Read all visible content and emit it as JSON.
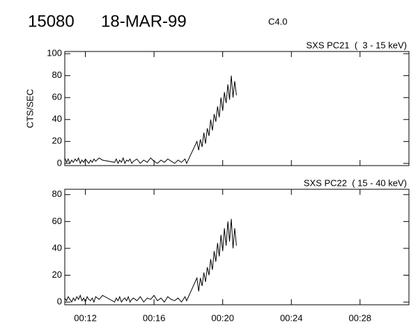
{
  "header": {
    "id": "15080",
    "date": "18-MAR-99",
    "class": "C4.0"
  },
  "chart_data": [
    {
      "type": "line",
      "title": "SXS PC21  (  3 - 15 keV)",
      "ylabel": "CTS/SEC",
      "color": "#000000",
      "xlim": [
        10.8,
        30.85
      ],
      "xticks": [
        12,
        16,
        20,
        24,
        28
      ],
      "ylim": [
        -2,
        102
      ],
      "yticks": [
        0,
        20,
        40,
        60,
        80,
        100
      ],
      "x": [
        10.8,
        10.9,
        11.0,
        11.1,
        11.2,
        11.3,
        11.4,
        11.5,
        11.6,
        11.7,
        11.8,
        11.9,
        12.0,
        12.1,
        12.2,
        12.3,
        12.4,
        12.5,
        12.6,
        12.8,
        13.0,
        13.7,
        13.8,
        13.9,
        14.0,
        14.1,
        14.2,
        14.3,
        14.4,
        14.5,
        14.6,
        14.7,
        14.8,
        15.0,
        15.2,
        15.4,
        15.6,
        15.8,
        16.0,
        16.2,
        16.4,
        16.6,
        16.8,
        17.0,
        17.2,
        17.4,
        17.6,
        17.8,
        17.9,
        18.5,
        18.6,
        18.7,
        18.8,
        18.9,
        19.0,
        19.1,
        19.2,
        19.3,
        19.4,
        19.5,
        19.6,
        19.7,
        19.8,
        19.9,
        20.0,
        20.1,
        20.2,
        20.3,
        20.4,
        20.5,
        20.6,
        20.7,
        20.8
      ],
      "values": [
        5,
        1,
        4,
        0,
        3,
        1,
        4,
        2,
        5,
        0,
        3,
        1,
        4,
        2,
        0,
        3,
        1,
        4,
        2,
        5,
        3,
        1,
        4,
        0,
        3,
        1,
        5,
        0,
        3,
        2,
        4,
        0,
        2,
        4,
        0,
        3,
        1,
        5,
        2,
        0,
        3,
        1,
        4,
        2,
        0,
        3,
        1,
        4,
        0,
        20,
        12,
        22,
        15,
        28,
        18,
        32,
        25,
        40,
        30,
        45,
        38,
        52,
        42,
        60,
        48,
        65,
        55,
        72,
        58,
        80,
        60,
        75,
        62
      ]
    },
    {
      "type": "line",
      "title": "SXS PC22  ( 15 - 40 keV)",
      "color": "#000000",
      "xlim": [
        10.8,
        30.85
      ],
      "xticks": [
        {
          "value": 12,
          "label": "00:12"
        },
        {
          "value": 16,
          "label": "00:16"
        },
        {
          "value": 20,
          "label": "00:20"
        },
        {
          "value": 24,
          "label": "00:24"
        },
        {
          "value": 28,
          "label": "00:28"
        }
      ],
      "ylim": [
        -2,
        84
      ],
      "yticks": [
        0,
        20,
        40,
        60,
        80
      ],
      "x": [
        10.8,
        10.9,
        11.0,
        11.1,
        11.2,
        11.3,
        11.4,
        11.5,
        11.6,
        11.7,
        11.8,
        11.9,
        12.0,
        12.1,
        12.2,
        12.3,
        12.4,
        12.5,
        12.6,
        12.8,
        13.0,
        13.7,
        13.8,
        13.9,
        14.0,
        14.1,
        14.2,
        14.3,
        14.4,
        14.5,
        14.6,
        14.7,
        14.8,
        15.0,
        15.2,
        15.4,
        15.6,
        15.8,
        16.0,
        16.2,
        16.4,
        16.6,
        16.8,
        17.0,
        17.2,
        17.4,
        17.6,
        17.8,
        17.9,
        18.5,
        18.6,
        18.7,
        18.8,
        18.9,
        19.0,
        19.1,
        19.2,
        19.3,
        19.4,
        19.5,
        19.6,
        19.7,
        19.8,
        19.9,
        20.0,
        20.1,
        20.2,
        20.3,
        20.4,
        20.5,
        20.6,
        20.7,
        20.8
      ],
      "values": [
        3,
        1,
        4,
        2,
        0,
        3,
        1,
        4,
        2,
        5,
        1,
        3,
        0,
        4,
        2,
        1,
        3,
        0,
        4,
        2,
        5,
        0,
        3,
        1,
        4,
        0,
        2,
        3,
        1,
        4,
        0,
        2,
        3,
        1,
        4,
        0,
        3,
        2,
        5,
        1,
        3,
        0,
        4,
        2,
        1,
        3,
        0,
        4,
        1,
        18,
        8,
        18,
        12,
        22,
        15,
        26,
        20,
        32,
        24,
        38,
        30,
        44,
        34,
        50,
        38,
        55,
        42,
        60,
        45,
        62,
        40,
        55,
        42
      ]
    }
  ]
}
